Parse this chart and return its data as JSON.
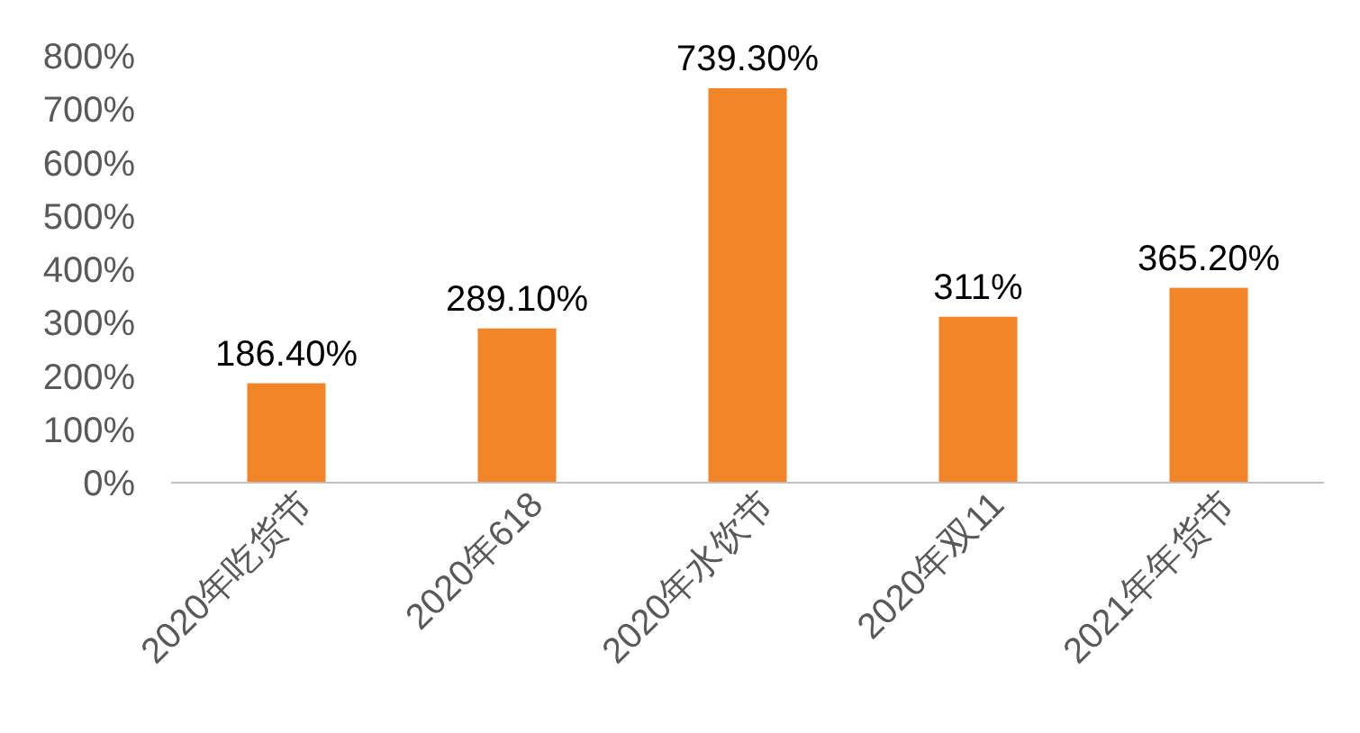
{
  "chart_data": {
    "type": "bar",
    "categories": [
      "2020年吃货节",
      "2020年618",
      "2020年水饮节",
      "2020年双11",
      "2021年年货节"
    ],
    "values": [
      186.4,
      289.1,
      739.3,
      311,
      365.2
    ],
    "value_labels": [
      "186.40%",
      "289.10%",
      "739.30%",
      "311%",
      "365.20%"
    ],
    "color": "#f28527",
    "ylim": [
      0,
      800
    ],
    "yticks": [
      {
        "value": 0,
        "label": "0%"
      },
      {
        "value": 100,
        "label": "100%"
      },
      {
        "value": 200,
        "label": "200%"
      },
      {
        "value": 300,
        "label": "300%"
      },
      {
        "value": 400,
        "label": "400%"
      },
      {
        "value": 500,
        "label": "500%"
      },
      {
        "value": 600,
        "label": "600%"
      },
      {
        "value": 700,
        "label": "700%"
      },
      {
        "value": 800,
        "label": "800%"
      }
    ],
    "grid": false
  }
}
